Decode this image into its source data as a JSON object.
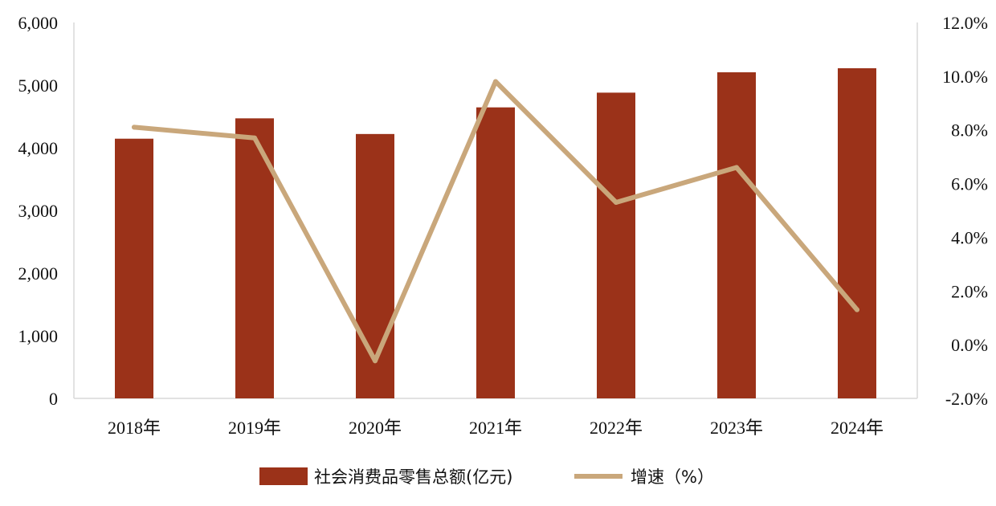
{
  "chart_data": {
    "type": "bar",
    "categories": [
      "2018年",
      "2019年",
      "2020年",
      "2021年",
      "2022年",
      "2023年",
      "2024年"
    ],
    "series": [
      {
        "name": "社会消费品零售总额(亿元)",
        "type": "bar",
        "axis": "left",
        "color": "#9b3219",
        "values": [
          4145,
          4470,
          4220,
          4645,
          4880,
          5205,
          5270
        ]
      },
      {
        "name": "增速（%）",
        "type": "line",
        "axis": "right",
        "color": "#c9a77b",
        "values": [
          8.1,
          7.7,
          -0.6,
          9.8,
          5.3,
          6.6,
          1.3
        ]
      }
    ],
    "y_left": {
      "lim": [
        0,
        6000
      ],
      "ticks": [
        0,
        1000,
        2000,
        3000,
        4000,
        5000,
        6000
      ],
      "tick_labels": [
        "0",
        "1,000",
        "2,000",
        "3,000",
        "4,000",
        "5,000",
        "6,000"
      ]
    },
    "y_right": {
      "lim": [
        -2,
        12
      ],
      "ticks": [
        -2,
        0,
        2,
        4,
        6,
        8,
        10,
        12
      ],
      "tick_labels": [
        "-2.0%",
        "0.0%",
        "2.0%",
        "4.0%",
        "6.0%",
        "8.0%",
        "10.0%",
        "12.0%"
      ]
    },
    "grid": false,
    "legend_position": "bottom-center",
    "title": "",
    "xlabel": "",
    "ylabel": ""
  }
}
